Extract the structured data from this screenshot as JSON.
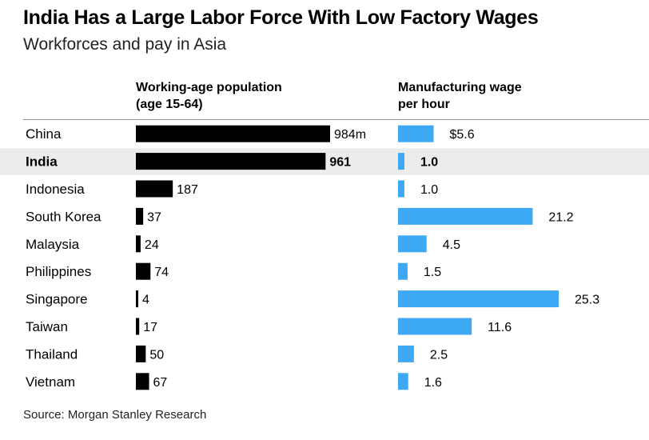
{
  "chart_data": {
    "type": "bar",
    "title": "India Has a Large Labor Force With Low Factory Wages",
    "subtitle": "Workforces and pay in Asia",
    "source": "Source: Morgan Stanley Research",
    "highlight": "India",
    "highlight_bg": "#ececec",
    "categories": [
      "China",
      "India",
      "Indonesia",
      "South Korea",
      "Malaysia",
      "Philippines",
      "Singapore",
      "Taiwan",
      "Thailand",
      "Vietnam"
    ],
    "series": [
      {
        "name": "Working-age population",
        "header_lines": [
          "Working-age population",
          "(age 15-64)"
        ],
        "values": [
          984,
          961,
          187,
          37,
          24,
          74,
          4,
          17,
          50,
          67
        ],
        "labels": [
          "984m",
          "961",
          "187",
          "37",
          "24",
          "74",
          "4",
          "17",
          "50",
          "67"
        ],
        "max": 984,
        "color": "#000000"
      },
      {
        "name": "Manufacturing wage per hour",
        "header_lines": [
          "Manufacturing wage",
          "per hour"
        ],
        "values": [
          5.6,
          1.0,
          1.0,
          21.2,
          4.5,
          1.5,
          25.3,
          11.6,
          2.5,
          1.6
        ],
        "labels": [
          "$5.6",
          "1.0",
          "1.0",
          "21.2",
          "4.5",
          "1.5",
          "25.3",
          "11.6",
          "2.5",
          "1.6"
        ],
        "max": 25.3,
        "color": "#3da9f5"
      }
    ]
  }
}
